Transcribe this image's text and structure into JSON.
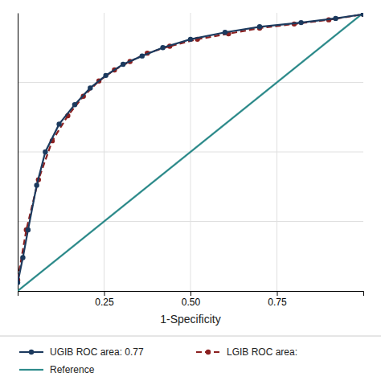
{
  "chart_data": {
    "type": "line",
    "x_label": "1-Specificity",
    "xlim": [
      0,
      1
    ],
    "ylim": [
      0,
      1
    ],
    "xticks": [
      0.25,
      {
        "value": 0.5,
        "label": "0.50"
      },
      0.75
    ],
    "yticks": [
      0.25,
      0.5,
      0.75
    ],
    "tick_labels": "x",
    "grid": true,
    "legend": "bottom",
    "series": [
      {
        "name": "UGIB ROC area: 0.77",
        "color": "#1c3a5e",
        "line_style": "solid",
        "marker": "circle",
        "x": [
          0.0,
          0.015,
          0.03,
          0.055,
          0.08,
          0.12,
          0.165,
          0.21,
          0.255,
          0.305,
          0.36,
          0.42,
          0.5,
          0.6,
          0.7,
          0.82,
          0.92,
          1.0
        ],
        "values": [
          0.03,
          0.12,
          0.22,
          0.38,
          0.5,
          0.6,
          0.67,
          0.73,
          0.775,
          0.815,
          0.845,
          0.875,
          0.905,
          0.93,
          0.95,
          0.965,
          0.98,
          0.995
        ]
      },
      {
        "name": "LGIB ROC area:",
        "color": "#8b2020",
        "line_style": "dashed",
        "marker": "circle",
        "x": [
          0.0,
          0.025,
          0.06,
          0.1,
          0.145,
          0.19,
          0.235,
          0.28,
          0.325,
          0.375,
          0.44,
          0.52,
          0.61,
          0.7,
          0.8,
          0.9,
          1.0
        ],
        "values": [
          0.04,
          0.22,
          0.4,
          0.54,
          0.63,
          0.7,
          0.755,
          0.795,
          0.825,
          0.855,
          0.88,
          0.905,
          0.925,
          0.945,
          0.96,
          0.975,
          0.995
        ]
      },
      {
        "name": "Reference",
        "color": "#2e8b8b",
        "line_style": "solid",
        "x": [
          0.0,
          1.0
        ],
        "values": [
          0.0,
          1.0
        ]
      }
    ]
  }
}
